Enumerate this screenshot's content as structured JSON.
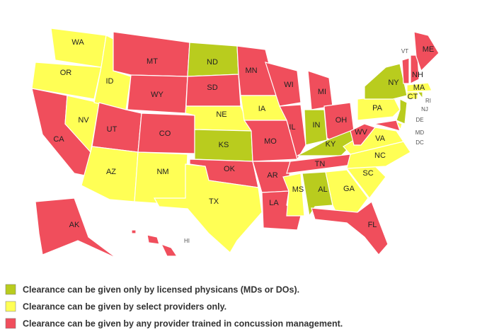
{
  "map": {
    "states": [
      {
        "label": "WA",
        "color": "#ffff55"
      },
      {
        "label": "OR",
        "color": "#ffff55"
      },
      {
        "label": "CA",
        "color": "#f04e5c"
      },
      {
        "label": "NV",
        "color": "#ffff55"
      },
      {
        "label": "ID",
        "color": "#ffff55"
      },
      {
        "label": "MT",
        "color": "#f04e5c"
      },
      {
        "label": "WY",
        "color": "#f04e5c"
      },
      {
        "label": "UT",
        "color": "#f04e5c"
      },
      {
        "label": "AZ",
        "color": "#ffff55"
      },
      {
        "label": "CO",
        "color": "#f04e5c"
      },
      {
        "label": "NM",
        "color": "#ffff55"
      },
      {
        "label": "ND",
        "color": "#b9cc1e"
      },
      {
        "label": "SD",
        "color": "#f04e5c"
      },
      {
        "label": "NE",
        "color": "#ffff55"
      },
      {
        "label": "KS",
        "color": "#b9cc1e"
      },
      {
        "label": "OK",
        "color": "#f04e5c"
      },
      {
        "label": "TX",
        "color": "#ffff55"
      },
      {
        "label": "MN",
        "color": "#f04e5c"
      },
      {
        "label": "IA",
        "color": "#ffff55"
      },
      {
        "label": "MO",
        "color": "#f04e5c"
      },
      {
        "label": "AR",
        "color": "#f04e5c"
      },
      {
        "label": "LA",
        "color": "#f04e5c"
      },
      {
        "label": "WI",
        "color": "#f04e5c"
      },
      {
        "label": "IL",
        "color": "#f04e5c"
      },
      {
        "label": "MI",
        "color": "#f04e5c"
      },
      {
        "label": "IN",
        "color": "#b9cc1e"
      },
      {
        "label": "OH",
        "color": "#f04e5c"
      },
      {
        "label": "KY",
        "color": "#b9cc1e"
      },
      {
        "label": "TN",
        "color": "#f04e5c"
      },
      {
        "label": "MS",
        "color": "#ffff55"
      },
      {
        "label": "AL",
        "color": "#b9cc1e"
      },
      {
        "label": "GA",
        "color": "#ffff55"
      },
      {
        "label": "FL",
        "color": "#f04e5c"
      },
      {
        "label": "SC",
        "color": "#ffff55"
      },
      {
        "label": "NC",
        "color": "#ffff55"
      },
      {
        "label": "VA",
        "color": "#ffff55"
      },
      {
        "label": "WV",
        "color": "#f04e5c"
      },
      {
        "label": "PA",
        "color": "#ffff55"
      },
      {
        "label": "NY",
        "color": "#b9cc1e"
      },
      {
        "label": "NJ",
        "color": "#b9cc1e"
      },
      {
        "label": "DE",
        "color": "#ffff55"
      },
      {
        "label": "MD",
        "color": "#f04e5c"
      },
      {
        "label": "DC",
        "color": "#ffff55"
      },
      {
        "label": "VT",
        "color": "#f04e5c"
      },
      {
        "label": "NH",
        "color": "#f04e5c"
      },
      {
        "label": "ME",
        "color": "#f04e5c"
      },
      {
        "label": "MA",
        "color": "#ffff55"
      },
      {
        "label": "CT",
        "color": "#ffff55"
      },
      {
        "label": "RI",
        "color": "#b9cc1e"
      },
      {
        "label": "AK",
        "color": "#f04e5c"
      },
      {
        "label": "HI",
        "color": "#f04e5c"
      }
    ],
    "legend": [
      {
        "label": "Clearance can be given only by licensed physicans (MDs or DOs).",
        "color": "#b9cc1e"
      },
      {
        "label": "Clearance can be given by select providers only.",
        "color": "#ffff55"
      },
      {
        "label": "Clearance can be given by any provider trained in concussion management.",
        "color": "#f04e5c"
      }
    ]
  }
}
